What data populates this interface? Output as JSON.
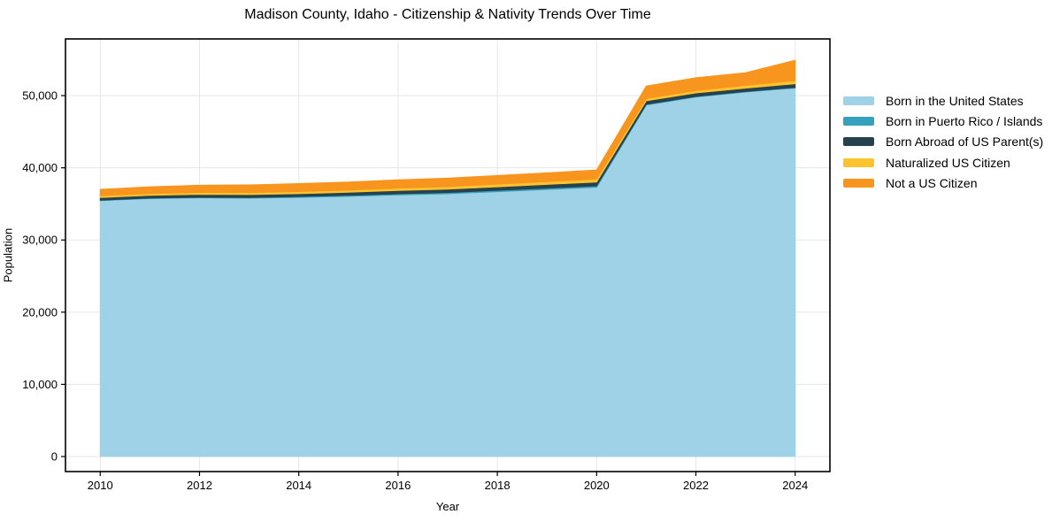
{
  "chart_data": {
    "type": "area",
    "stacked": true,
    "title": "Madison County, Idaho - Citizenship & Nativity Trends Over Time",
    "xlabel": "Year",
    "ylabel": "Population",
    "x": [
      2010,
      2011,
      2012,
      2013,
      2014,
      2015,
      2016,
      2017,
      2018,
      2019,
      2020,
      2021,
      2022,
      2023,
      2024
    ],
    "series": [
      {
        "name": "Born in the United States",
        "color": "#9fd1e7",
        "values": [
          35450,
          35750,
          35850,
          35800,
          35900,
          36050,
          36250,
          36400,
          36700,
          37000,
          37300,
          48700,
          49800,
          50500,
          51050
        ]
      },
      {
        "name": "Born in Puerto Rico / Islands",
        "color": "#35a1bc",
        "values": [
          60,
          60,
          70,
          80,
          120,
          140,
          160,
          170,
          180,
          190,
          200,
          90,
          80,
          80,
          80
        ]
      },
      {
        "name": "Born Abroad of US Parent(s)",
        "color": "#26414f",
        "values": [
          370,
          380,
          400,
          420,
          400,
          420,
          450,
          480,
          490,
          510,
          530,
          500,
          490,
          460,
          520
        ]
      },
      {
        "name": "Naturalized US Citizen",
        "color": "#fdc32e",
        "values": [
          240,
          250,
          260,
          270,
          290,
          300,
          320,
          340,
          370,
          390,
          410,
          320,
          330,
          370,
          430
        ]
      },
      {
        "name": "Not a US Citizen",
        "color": "#f8951e",
        "values": [
          890,
          930,
          1000,
          1060,
          1100,
          1120,
          1150,
          1180,
          1190,
          1210,
          1250,
          1710,
          1780,
          1760,
          2820
        ]
      }
    ],
    "xticks": {
      "values": [
        2010,
        2012,
        2014,
        2016,
        2018,
        2020,
        2022,
        2024
      ],
      "labels": [
        "2010",
        "2012",
        "2014",
        "2016",
        "2018",
        "2020",
        "2022",
        "2024"
      ]
    },
    "yticks": {
      "values": [
        0,
        10000,
        20000,
        30000,
        40000,
        50000
      ],
      "labels": [
        "0",
        "10,000",
        "20,000",
        "30,000",
        "40,000",
        "50,000"
      ]
    },
    "xlim": [
      2009.3,
      2024.7
    ],
    "ylim": [
      -2080,
      57850
    ],
    "grid": true,
    "grid_color": "#e7e7e7",
    "legend_position": "outside-right-top"
  }
}
